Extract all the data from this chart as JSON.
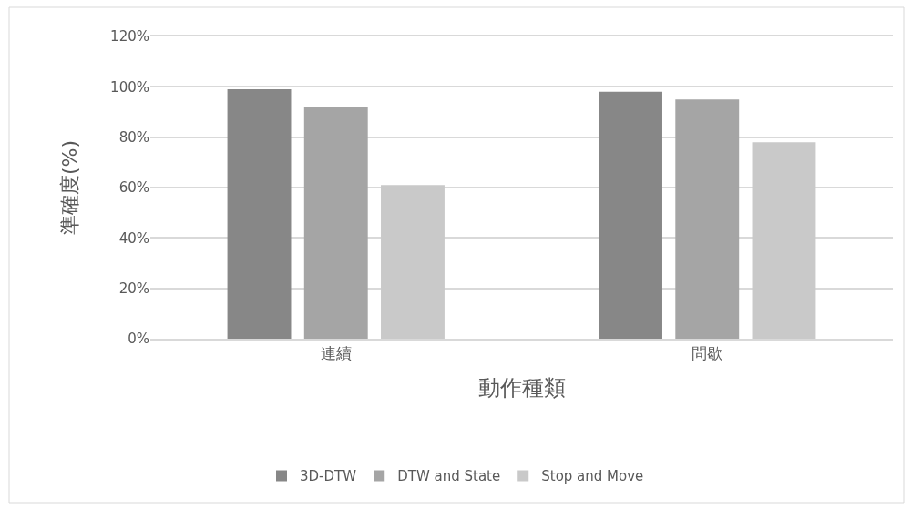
{
  "chart_data": {
    "type": "bar",
    "xlabel": "動作種類",
    "ylabel": "準確度(%)",
    "categories": [
      "連續",
      "問歇"
    ],
    "series": [
      {
        "name": "3D-DTW",
        "color": "#878787",
        "values": [
          99,
          98
        ]
      },
      {
        "name": "DTW and State",
        "color": "#a5a5a5",
        "values": [
          92,
          95
        ]
      },
      {
        "name": "Stop and Move",
        "color": "#c9c9c9",
        "values": [
          61,
          78
        ]
      }
    ],
    "ylim": [
      0,
      120
    ],
    "yticks": [
      {
        "value": 0,
        "label": "0%"
      },
      {
        "value": 20,
        "label": "20%"
      },
      {
        "value": 40,
        "label": "40%"
      },
      {
        "value": 60,
        "label": "60%"
      },
      {
        "value": 80,
        "label": "80%"
      },
      {
        "value": 100,
        "label": "100%"
      },
      {
        "value": 120,
        "label": "120%"
      }
    ],
    "grid": "y",
    "legend": "bottom"
  }
}
